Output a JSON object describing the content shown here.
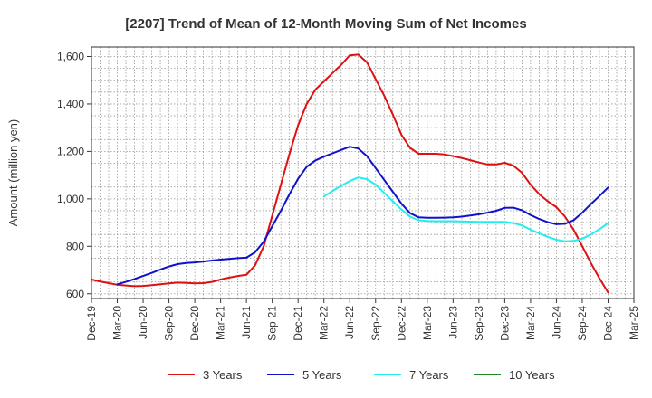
{
  "chart_data": {
    "type": "line",
    "title": "[2207]  Trend of Mean of 12-Month Moving Sum of Net Incomes",
    "xlabel": "",
    "ylabel": "Amount (million yen)",
    "ylim": [
      580,
      1640
    ],
    "yticks": [
      600,
      800,
      1000,
      1200,
      1400,
      1600
    ],
    "ytick_labels": [
      "600",
      "800",
      "1,000",
      "1,200",
      "1,400",
      "1,600"
    ],
    "x_tick_labels": [
      "Dec-19",
      "Mar-20",
      "Jun-20",
      "Sep-20",
      "Dec-20",
      "Mar-21",
      "Jun-21",
      "Sep-21",
      "Dec-21",
      "Mar-22",
      "Jun-22",
      "Sep-22",
      "Dec-22",
      "Mar-23",
      "Jun-23",
      "Sep-23",
      "Dec-23",
      "Mar-24",
      "Jun-24",
      "Sep-24",
      "Dec-24",
      "Mar-25"
    ],
    "grid": true,
    "legend_position": "bottom",
    "series": [
      {
        "name": "3 Years",
        "color": "#dd1111",
        "points": [
          [
            "Dec-19",
            660
          ],
          [
            "Jan-20",
            652
          ],
          [
            "Feb-20",
            645
          ],
          [
            "Mar-20",
            638
          ],
          [
            "Apr-20",
            635
          ],
          [
            "May-20",
            632
          ],
          [
            "Jun-20",
            633
          ],
          [
            "Jul-20",
            636
          ],
          [
            "Aug-20",
            640
          ],
          [
            "Sep-20",
            644
          ],
          [
            "Oct-20",
            647
          ],
          [
            "Nov-20",
            646
          ],
          [
            "Dec-20",
            644
          ],
          [
            "Jan-21",
            645
          ],
          [
            "Feb-21",
            650
          ],
          [
            "Mar-21",
            660
          ],
          [
            "Apr-21",
            668
          ],
          [
            "May-21",
            675
          ],
          [
            "Jun-21",
            680
          ],
          [
            "Jul-21",
            720
          ],
          [
            "Aug-21",
            800
          ],
          [
            "Sep-21",
            930
          ],
          [
            "Oct-21",
            1060
          ],
          [
            "Nov-21",
            1190
          ],
          [
            "Dec-21",
            1310
          ],
          [
            "Jan-22",
            1400
          ],
          [
            "Feb-22",
            1460
          ],
          [
            "Mar-22",
            1495
          ],
          [
            "Apr-22",
            1530
          ],
          [
            "May-22",
            1565
          ],
          [
            "Jun-22",
            1605
          ],
          [
            "Jul-22",
            1608
          ],
          [
            "Aug-22",
            1575
          ],
          [
            "Sep-22",
            1505
          ],
          [
            "Oct-22",
            1435
          ],
          [
            "Nov-22",
            1355
          ],
          [
            "Dec-22",
            1270
          ],
          [
            "Jan-23",
            1215
          ],
          [
            "Feb-23",
            1190
          ],
          [
            "Mar-23",
            1190
          ],
          [
            "Apr-23",
            1190
          ],
          [
            "May-23",
            1187
          ],
          [
            "Jun-23",
            1180
          ],
          [
            "Jul-23",
            1172
          ],
          [
            "Aug-23",
            1163
          ],
          [
            "Sep-23",
            1153
          ],
          [
            "Oct-23",
            1145
          ],
          [
            "Nov-23",
            1145
          ],
          [
            "Dec-23",
            1152
          ],
          [
            "Jan-24",
            1140
          ],
          [
            "Feb-24",
            1110
          ],
          [
            "Mar-24",
            1060
          ],
          [
            "Apr-24",
            1020
          ],
          [
            "May-24",
            990
          ],
          [
            "Jun-24",
            965
          ],
          [
            "Jul-24",
            925
          ],
          [
            "Aug-24",
            870
          ],
          [
            "Sep-24",
            800
          ],
          [
            "Oct-24",
            730
          ],
          [
            "Nov-24",
            665
          ],
          [
            "Dec-24",
            605
          ]
        ]
      },
      {
        "name": "5 Years",
        "color": "#1111cc",
        "points": [
          [
            "Mar-20",
            640
          ],
          [
            "Apr-20",
            650
          ],
          [
            "May-20",
            662
          ],
          [
            "Jun-20",
            675
          ],
          [
            "Jul-20",
            688
          ],
          [
            "Aug-20",
            702
          ],
          [
            "Sep-20",
            715
          ],
          [
            "Oct-20",
            725
          ],
          [
            "Nov-20",
            730
          ],
          [
            "Dec-20",
            732
          ],
          [
            "Jan-21",
            736
          ],
          [
            "Feb-21",
            740
          ],
          [
            "Mar-21",
            744
          ],
          [
            "Apr-21",
            747
          ],
          [
            "May-21",
            750
          ],
          [
            "Jun-21",
            752
          ],
          [
            "Jul-21",
            775
          ],
          [
            "Aug-21",
            820
          ],
          [
            "Sep-21",
            885
          ],
          [
            "Oct-21",
            950
          ],
          [
            "Nov-21",
            1020
          ],
          [
            "Dec-21",
            1085
          ],
          [
            "Jan-22",
            1135
          ],
          [
            "Feb-22",
            1162
          ],
          [
            "Mar-22",
            1178
          ],
          [
            "Apr-22",
            1192
          ],
          [
            "May-22",
            1206
          ],
          [
            "Jun-22",
            1220
          ],
          [
            "Jul-22",
            1212
          ],
          [
            "Aug-22",
            1180
          ],
          [
            "Sep-22",
            1130
          ],
          [
            "Oct-22",
            1080
          ],
          [
            "Nov-22",
            1030
          ],
          [
            "Dec-22",
            980
          ],
          [
            "Jan-23",
            940
          ],
          [
            "Feb-23",
            922
          ],
          [
            "Mar-23",
            920
          ],
          [
            "Apr-23",
            920
          ],
          [
            "May-23",
            921
          ],
          [
            "Jun-23",
            922
          ],
          [
            "Jul-23",
            925
          ],
          [
            "Aug-23",
            930
          ],
          [
            "Sep-23",
            935
          ],
          [
            "Oct-23",
            942
          ],
          [
            "Nov-23",
            950
          ],
          [
            "Dec-23",
            962
          ],
          [
            "Jan-24",
            963
          ],
          [
            "Feb-24",
            952
          ],
          [
            "Mar-24",
            932
          ],
          [
            "Apr-24",
            915
          ],
          [
            "May-24",
            902
          ],
          [
            "Jun-24",
            893
          ],
          [
            "Jul-24",
            895
          ],
          [
            "Aug-24",
            910
          ],
          [
            "Sep-24",
            942
          ],
          [
            "Oct-24",
            978
          ],
          [
            "Nov-24",
            1012
          ],
          [
            "Dec-24",
            1048
          ]
        ]
      },
      {
        "name": "7 Years",
        "color": "#22eeee",
        "points": [
          [
            "Mar-22",
            1010
          ],
          [
            "Apr-22",
            1033
          ],
          [
            "May-22",
            1055
          ],
          [
            "Jun-22",
            1075
          ],
          [
            "Jul-22",
            1090
          ],
          [
            "Aug-22",
            1083
          ],
          [
            "Sep-22",
            1060
          ],
          [
            "Oct-22",
            1025
          ],
          [
            "Nov-22",
            990
          ],
          [
            "Dec-22",
            955
          ],
          [
            "Jan-23",
            925
          ],
          [
            "Feb-23",
            910
          ],
          [
            "Mar-23",
            907
          ],
          [
            "Apr-23",
            906
          ],
          [
            "May-23",
            906
          ],
          [
            "Jun-23",
            906
          ],
          [
            "Jul-23",
            905
          ],
          [
            "Aug-23",
            904
          ],
          [
            "Sep-23",
            903
          ],
          [
            "Oct-23",
            903
          ],
          [
            "Nov-23",
            903
          ],
          [
            "Dec-23",
            903
          ],
          [
            "Jan-24",
            898
          ],
          [
            "Feb-24",
            888
          ],
          [
            "Mar-24",
            870
          ],
          [
            "Apr-24",
            855
          ],
          [
            "May-24",
            840
          ],
          [
            "Jun-24",
            828
          ],
          [
            "Jul-24",
            821
          ],
          [
            "Aug-24",
            823
          ],
          [
            "Sep-24",
            832
          ],
          [
            "Oct-24",
            850
          ],
          [
            "Nov-24",
            872
          ],
          [
            "Dec-24",
            898
          ]
        ]
      },
      {
        "name": "10 Years",
        "color": "#228822",
        "points": []
      }
    ]
  }
}
